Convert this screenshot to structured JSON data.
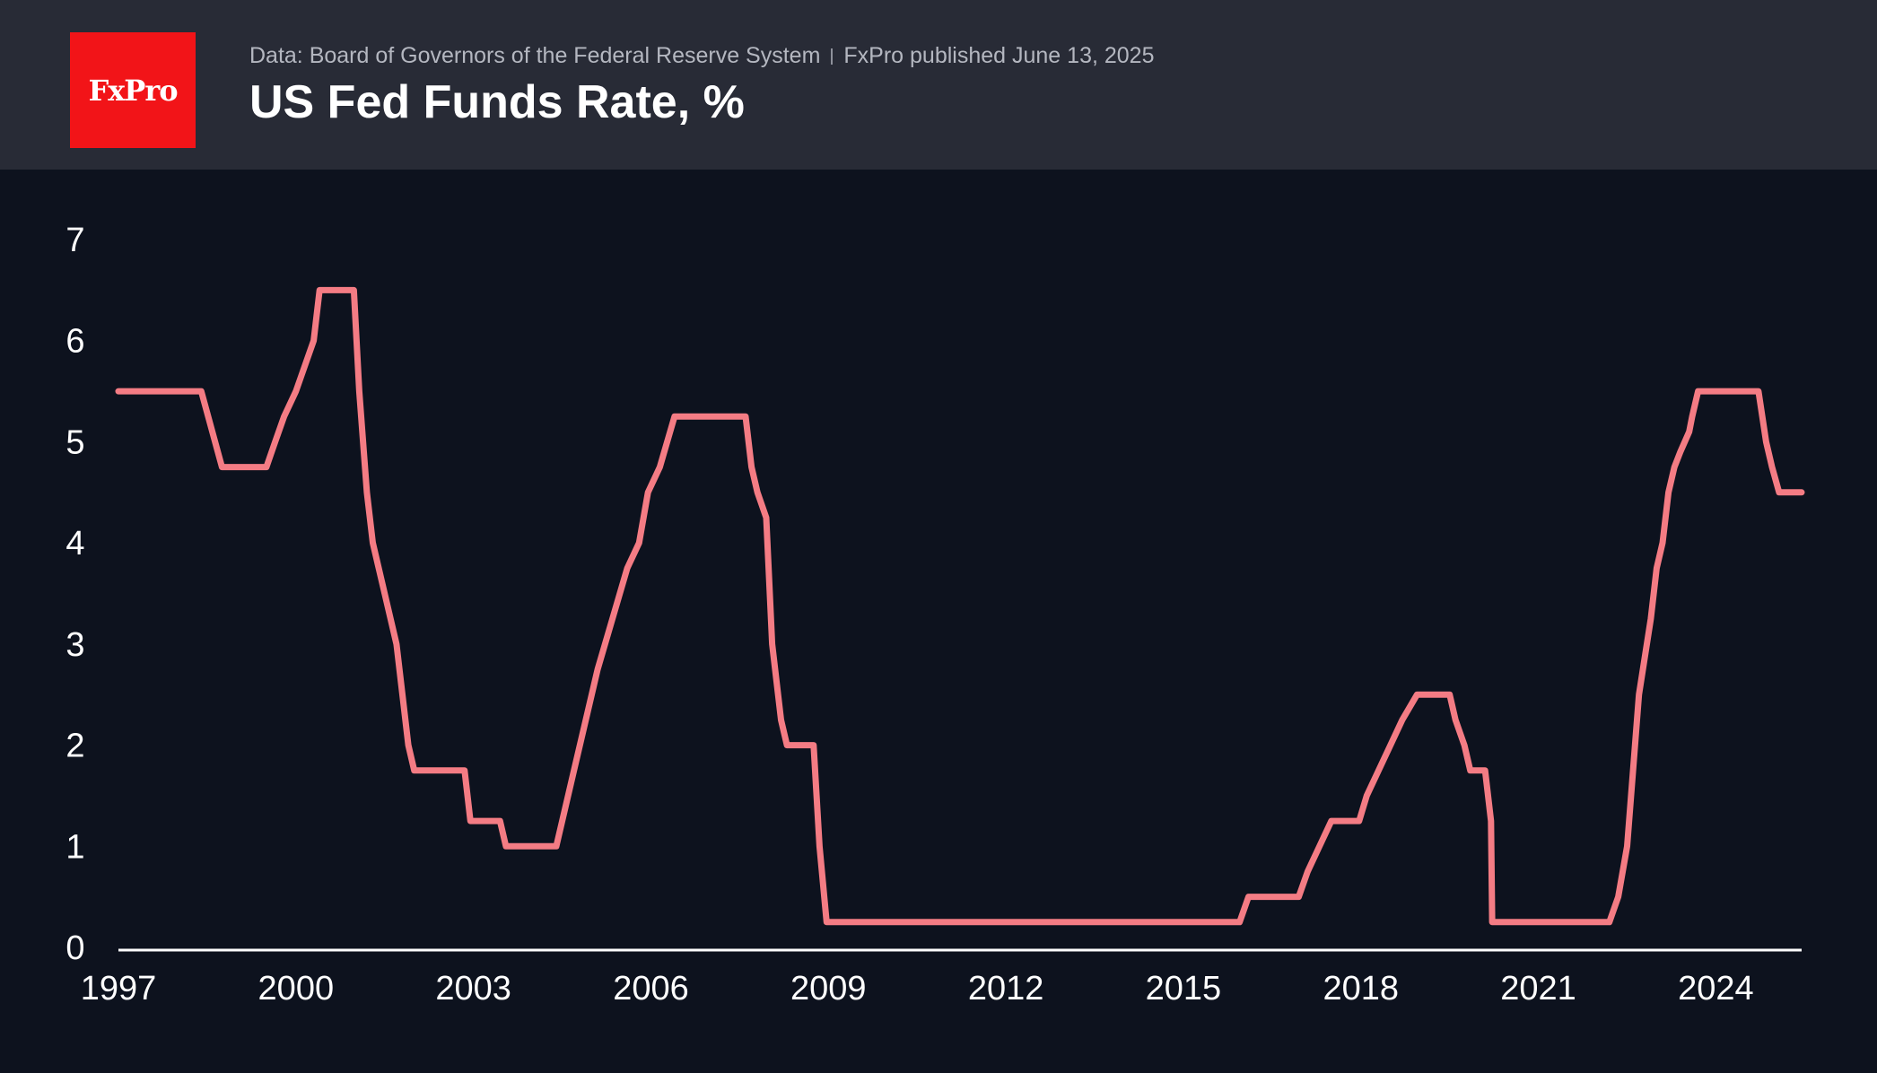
{
  "header": {
    "logo_text": "FxPro",
    "data_source": "Data: Board of Governors of the Federal Reserve System",
    "published": "FxPro published June 13, 2025",
    "title": "US Fed Funds Rate, %"
  },
  "colors": {
    "background": "#0d121e",
    "header_background": "#282b36",
    "logo_background": "#f21418",
    "line": "#f47c84",
    "axis": "#ffffff",
    "text": "#ffffff"
  },
  "chart_data": {
    "type": "line",
    "title": "US Fed Funds Rate, %",
    "xlabel": "",
    "ylabel": "",
    "xlim": [
      1997,
      2025.45
    ],
    "ylim": [
      0,
      7
    ],
    "x_ticks": [
      1997,
      2000,
      2003,
      2006,
      2009,
      2012,
      2015,
      2018,
      2021,
      2024
    ],
    "y_ticks": [
      0,
      1,
      2,
      3,
      4,
      5,
      6,
      7
    ],
    "grid": false,
    "legend": "none",
    "series": [
      {
        "line_style": "step",
        "points": [
          [
            1997.0,
            5.5
          ],
          [
            1998.4,
            5.5
          ],
          [
            1998.75,
            4.75
          ],
          [
            1999.5,
            4.75
          ],
          [
            1999.65,
            5.0
          ],
          [
            1999.8,
            5.25
          ],
          [
            2000.0,
            5.5
          ],
          [
            2000.15,
            5.75
          ],
          [
            2000.3,
            6.0
          ],
          [
            2000.4,
            6.5
          ],
          [
            2000.98,
            6.5
          ],
          [
            2001.07,
            5.5
          ],
          [
            2001.2,
            4.5
          ],
          [
            2001.3,
            4.0
          ],
          [
            2001.4,
            3.75
          ],
          [
            2001.5,
            3.5
          ],
          [
            2001.7,
            3.0
          ],
          [
            2001.8,
            2.5
          ],
          [
            2001.9,
            2.0
          ],
          [
            2002.0,
            1.75
          ],
          [
            2002.85,
            1.75
          ],
          [
            2002.95,
            1.25
          ],
          [
            2003.45,
            1.25
          ],
          [
            2003.55,
            1.0
          ],
          [
            2004.4,
            1.0
          ],
          [
            2004.5,
            1.25
          ],
          [
            2004.7,
            1.75
          ],
          [
            2004.9,
            2.25
          ],
          [
            2005.1,
            2.75
          ],
          [
            2005.35,
            3.25
          ],
          [
            2005.6,
            3.75
          ],
          [
            2005.8,
            4.0
          ],
          [
            2005.95,
            4.5
          ],
          [
            2006.15,
            4.75
          ],
          [
            2006.4,
            5.25
          ],
          [
            2007.6,
            5.25
          ],
          [
            2007.7,
            4.75
          ],
          [
            2007.8,
            4.5
          ],
          [
            2007.95,
            4.25
          ],
          [
            2008.05,
            3.0
          ],
          [
            2008.2,
            2.25
          ],
          [
            2008.3,
            2.0
          ],
          [
            2008.75,
            2.0
          ],
          [
            2008.8,
            1.5
          ],
          [
            2008.85,
            1.0
          ],
          [
            2008.97,
            0.25
          ],
          [
            2015.95,
            0.25
          ],
          [
            2016.1,
            0.5
          ],
          [
            2016.95,
            0.5
          ],
          [
            2017.1,
            0.75
          ],
          [
            2017.3,
            1.0
          ],
          [
            2017.5,
            1.25
          ],
          [
            2017.97,
            1.25
          ],
          [
            2018.1,
            1.5
          ],
          [
            2018.3,
            1.75
          ],
          [
            2018.5,
            2.0
          ],
          [
            2018.7,
            2.25
          ],
          [
            2018.95,
            2.5
          ],
          [
            2019.5,
            2.5
          ],
          [
            2019.6,
            2.25
          ],
          [
            2019.75,
            2.0
          ],
          [
            2019.85,
            1.75
          ],
          [
            2020.1,
            1.75
          ],
          [
            2020.2,
            1.25
          ],
          [
            2020.22,
            0.25
          ],
          [
            2022.2,
            0.25
          ],
          [
            2022.35,
            0.5
          ],
          [
            2022.5,
            1.0
          ],
          [
            2022.6,
            1.75
          ],
          [
            2022.7,
            2.5
          ],
          [
            2022.9,
            3.25
          ],
          [
            2023.0,
            3.75
          ],
          [
            2023.1,
            4.0
          ],
          [
            2023.2,
            4.5
          ],
          [
            2023.3,
            4.75
          ],
          [
            2023.4,
            4.9
          ],
          [
            2023.55,
            5.1
          ],
          [
            2023.6,
            5.25
          ],
          [
            2023.7,
            5.5
          ],
          [
            2024.72,
            5.5
          ],
          [
            2024.85,
            5.0
          ],
          [
            2024.95,
            4.75
          ],
          [
            2025.07,
            4.5
          ],
          [
            2025.45,
            4.5
          ]
        ]
      }
    ]
  }
}
